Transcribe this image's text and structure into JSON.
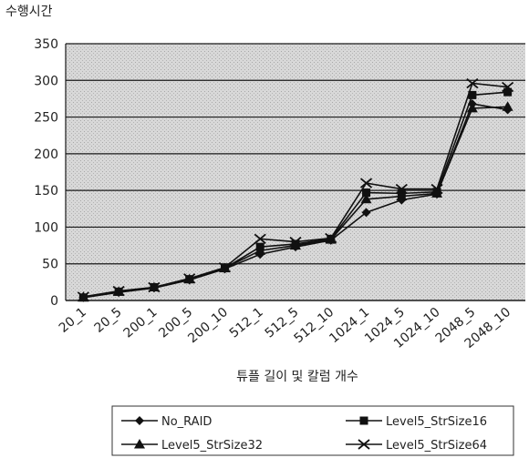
{
  "chart_data": {
    "type": "line",
    "title": "",
    "ylabel": "수행시간",
    "xlabel": "튜플 길이 및 칼럼 개수",
    "ylim": [
      0,
      350
    ],
    "yticks": [
      0,
      50,
      100,
      150,
      200,
      250,
      300,
      350
    ],
    "grid": true,
    "legend_position": "bottom",
    "categories": [
      "20_1",
      "20_5",
      "200_1",
      "200_5",
      "200_10",
      "512_1",
      "512_5",
      "512_10",
      "1024_1",
      "1024_5",
      "1024_10",
      "2048_5",
      "2048_10"
    ],
    "series": [
      {
        "name": "No_RAID",
        "marker": "diamond",
        "values": [
          4,
          11,
          17,
          28,
          43,
          63,
          73,
          82,
          120,
          137,
          145,
          268,
          260
        ]
      },
      {
        "name": "Level5_StrSize16",
        "marker": "square",
        "values": [
          4,
          12,
          18,
          29,
          44,
          73,
          77,
          84,
          147,
          146,
          148,
          280,
          284
        ]
      },
      {
        "name": "Level5_StrSize32",
        "marker": "triangle",
        "values": [
          5,
          12,
          18,
          29,
          44,
          68,
          75,
          83,
          138,
          142,
          146,
          262,
          264
        ]
      },
      {
        "name": "Level5_StrSize64",
        "marker": "x",
        "values": [
          5,
          13,
          18,
          30,
          45,
          84,
          80,
          85,
          160,
          152,
          152,
          296,
          291
        ]
      }
    ]
  }
}
